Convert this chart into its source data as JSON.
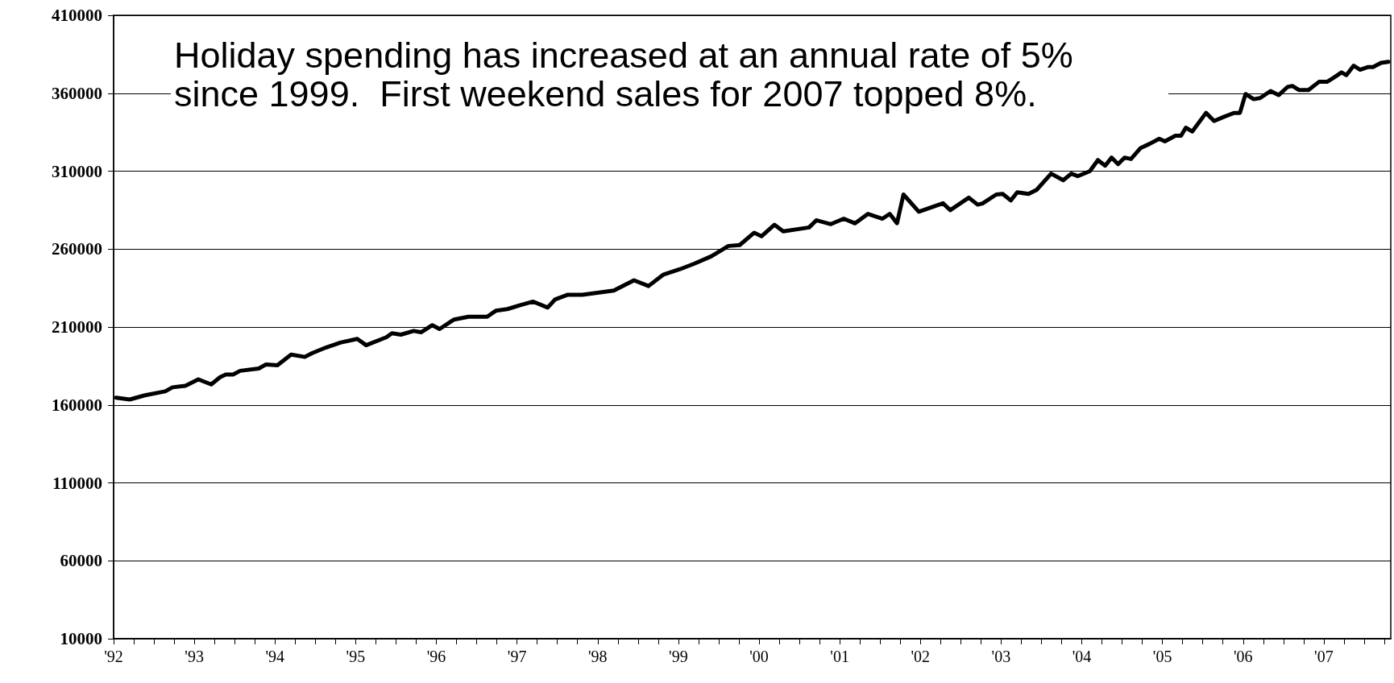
{
  "chart_data": {
    "type": "line",
    "annotations": [
      "Holiday spending has increased at an annual rate of 5% since 1999.  First weekend sales for 2007 topped 8%."
    ],
    "x": [
      1992.03,
      1992.2,
      1992.39,
      1992.64,
      1992.73,
      1992.89,
      1993.05,
      1993.21,
      1993.32,
      1993.39,
      1993.48,
      1993.57,
      1993.8,
      1993.89,
      1994.03,
      1994.2,
      1994.37,
      1994.46,
      1994.63,
      1994.81,
      1995.02,
      1995.13,
      1995.38,
      1995.45,
      1995.56,
      1995.72,
      1995.81,
      1995.95,
      1996.04,
      1996.22,
      1996.4,
      1996.63,
      1996.74,
      1996.88,
      1997.04,
      1997.2,
      1997.38,
      1997.47,
      1997.63,
      1997.81,
      1998.2,
      1998.45,
      1998.63,
      1998.81,
      1999.02,
      1999.2,
      1999.41,
      1999.62,
      1999.76,
      1999.94,
      2000.03,
      2000.19,
      2000.3,
      2000.62,
      2000.71,
      2000.89,
      2001.05,
      2001.19,
      2001.35,
      2001.53,
      2001.62,
      2001.71,
      2001.79,
      2001.98,
      2002.28,
      2002.37,
      2002.6,
      2002.71,
      2002.77,
      2002.94,
      2003.02,
      2003.12,
      2003.2,
      2003.34,
      2003.44,
      2003.62,
      2003.77,
      2003.87,
      2003.95,
      2004.1,
      2004.2,
      2004.29,
      2004.37,
      2004.45,
      2004.53,
      2004.61,
      2004.73,
      2004.84,
      2004.96,
      2005.03,
      2005.16,
      2005.23,
      2005.29,
      2005.37,
      2005.54,
      2005.64,
      2005.76,
      2005.89,
      2005.96,
      2006.03,
      2006.13,
      2006.21,
      2006.34,
      2006.44,
      2006.55,
      2006.61,
      2006.69,
      2006.81,
      2006.94,
      2007.04,
      2007.12,
      2007.22,
      2007.28,
      2007.37,
      2007.45,
      2007.55,
      2007.61,
      2007.71,
      2007.8
    ],
    "series": [
      {
        "color": "#000000",
        "values": [
          164600,
          163500,
          166200,
          168700,
          171300,
          172300,
          176400,
          173200,
          177800,
          179500,
          179500,
          181900,
          183400,
          186000,
          185500,
          192300,
          190800,
          193200,
          196800,
          200000,
          202400,
          198300,
          203400,
          206000,
          205100,
          207500,
          206600,
          211200,
          208700,
          214800,
          216600,
          216600,
          220500,
          221500,
          224000,
          226300,
          222500,
          227600,
          230700,
          230700,
          233400,
          240000,
          236300,
          243500,
          247100,
          250700,
          255400,
          262000,
          262600,
          270500,
          268200,
          275600,
          271400,
          273900,
          278500,
          276000,
          279500,
          276500,
          282600,
          279500,
          282600,
          276600,
          295000,
          284000,
          289400,
          285000,
          293000,
          288500,
          289300,
          295000,
          295400,
          291200,
          296400,
          295400,
          298000,
          308400,
          304200,
          308400,
          306800,
          310000,
          317100,
          313500,
          318700,
          314500,
          318700,
          317800,
          324900,
          327500,
          330800,
          329100,
          332700,
          332700,
          337900,
          335400,
          347400,
          342200,
          344800,
          347400,
          347400,
          359500,
          356200,
          356900,
          361400,
          358800,
          364000,
          364700,
          362100,
          362100,
          367300,
          367300,
          369900,
          373400,
          371600,
          377700,
          375100,
          376800,
          376800,
          379500,
          380200
        ]
      }
    ],
    "xlim": [
      1992,
      2007.83
    ],
    "xticks": [
      {
        "value": 1992,
        "label": "'92"
      },
      {
        "value": 1992.25,
        "label": null
      },
      {
        "value": 1992.5,
        "label": null
      },
      {
        "value": 1992.75,
        "label": null
      },
      {
        "value": 1993,
        "label": "'93"
      },
      {
        "value": 1993.25,
        "label": null
      },
      {
        "value": 1993.5,
        "label": null
      },
      {
        "value": 1993.75,
        "label": null
      },
      {
        "value": 1994,
        "label": "'94"
      },
      {
        "value": 1994.25,
        "label": null
      },
      {
        "value": 1994.5,
        "label": null
      },
      {
        "value": 1994.75,
        "label": null
      },
      {
        "value": 1995,
        "label": "'95"
      },
      {
        "value": 1995.25,
        "label": null
      },
      {
        "value": 1995.5,
        "label": null
      },
      {
        "value": 1995.75,
        "label": null
      },
      {
        "value": 1996,
        "label": "'96"
      },
      {
        "value": 1996.25,
        "label": null
      },
      {
        "value": 1996.5,
        "label": null
      },
      {
        "value": 1996.75,
        "label": null
      },
      {
        "value": 1997,
        "label": "'97"
      },
      {
        "value": 1997.25,
        "label": null
      },
      {
        "value": 1997.5,
        "label": null
      },
      {
        "value": 1997.75,
        "label": null
      },
      {
        "value": 1998,
        "label": "'98"
      },
      {
        "value": 1998.25,
        "label": null
      },
      {
        "value": 1998.5,
        "label": null
      },
      {
        "value": 1998.75,
        "label": null
      },
      {
        "value": 1999,
        "label": "'99"
      },
      {
        "value": 1999.25,
        "label": null
      },
      {
        "value": 1999.5,
        "label": null
      },
      {
        "value": 1999.75,
        "label": null
      },
      {
        "value": 2000,
        "label": "'00"
      },
      {
        "value": 2000.25,
        "label": null
      },
      {
        "value": 2000.5,
        "label": null
      },
      {
        "value": 2000.75,
        "label": null
      },
      {
        "value": 2001,
        "label": "'01"
      },
      {
        "value": 2001.25,
        "label": null
      },
      {
        "value": 2001.5,
        "label": null
      },
      {
        "value": 2001.75,
        "label": null
      },
      {
        "value": 2002,
        "label": "'02"
      },
      {
        "value": 2002.25,
        "label": null
      },
      {
        "value": 2002.5,
        "label": null
      },
      {
        "value": 2002.75,
        "label": null
      },
      {
        "value": 2003,
        "label": "'03"
      },
      {
        "value": 2003.25,
        "label": null
      },
      {
        "value": 2003.5,
        "label": null
      },
      {
        "value": 2003.75,
        "label": null
      },
      {
        "value": 2004,
        "label": "'04"
      },
      {
        "value": 2004.25,
        "label": null
      },
      {
        "value": 2004.5,
        "label": null
      },
      {
        "value": 2004.75,
        "label": null
      },
      {
        "value": 2005,
        "label": "'05"
      },
      {
        "value": 2005.25,
        "label": null
      },
      {
        "value": 2005.5,
        "label": null
      },
      {
        "value": 2005.75,
        "label": null
      },
      {
        "value": 2006,
        "label": "'06"
      },
      {
        "value": 2006.25,
        "label": null
      },
      {
        "value": 2006.5,
        "label": null
      },
      {
        "value": 2006.75,
        "label": null
      },
      {
        "value": 2007,
        "label": "'07"
      },
      {
        "value": 2007.25,
        "label": null
      },
      {
        "value": 2007.5,
        "label": null
      },
      {
        "value": 2007.75,
        "label": null
      }
    ],
    "ylim": [
      10000,
      410000
    ],
    "yticks": [
      10000,
      60000,
      110000,
      160000,
      210000,
      260000,
      310000,
      360000,
      410000
    ],
    "grid": "y"
  }
}
